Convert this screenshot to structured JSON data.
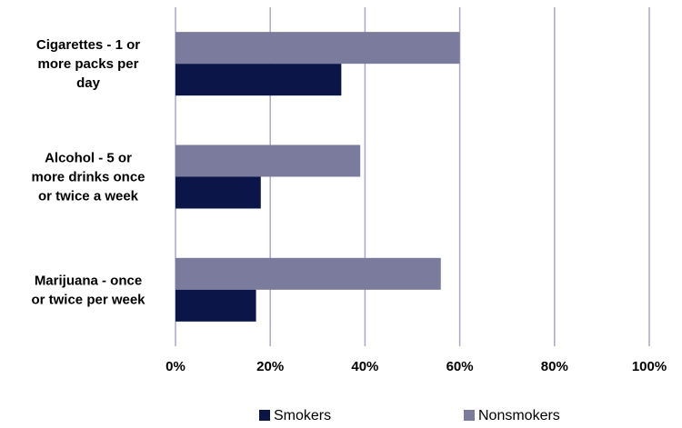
{
  "chart_data": {
    "type": "bar",
    "orientation": "horizontal",
    "categories": [
      [
        "Cigarettes - 1 or",
        "more packs per",
        "day"
      ],
      [
        "Alcohol - 5 or",
        "more drinks once",
        "or twice a week"
      ],
      [
        "Marijuana - once",
        "or twice per week"
      ]
    ],
    "series": [
      {
        "name": "Nonsmokers",
        "values": [
          60,
          39,
          56
        ],
        "color": "#7b7b9e"
      },
      {
        "name": "Smokers",
        "values": [
          35,
          18,
          17
        ],
        "color": "#0b1547"
      }
    ],
    "xlim": [
      0,
      100
    ],
    "x_ticks": [
      "0%",
      "20%",
      "40%",
      "60%",
      "80%",
      "100%"
    ],
    "grid": true,
    "grid_color": "#a9a9c8",
    "legend": {
      "position": "bottom",
      "order": [
        "Smokers",
        "Nonsmokers"
      ]
    }
  }
}
